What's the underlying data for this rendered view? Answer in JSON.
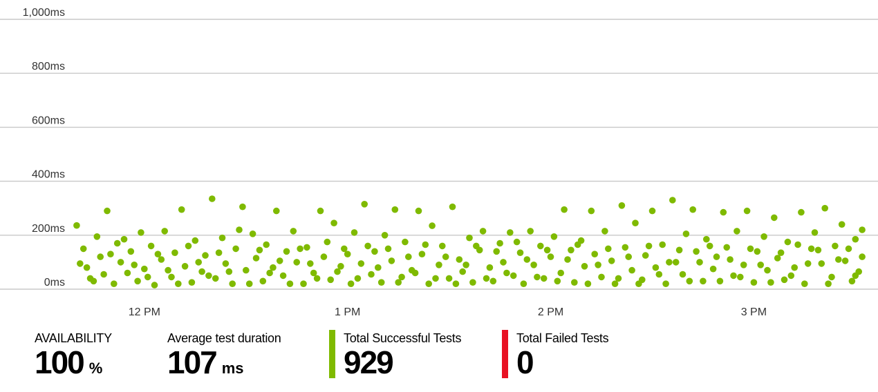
{
  "chart_data": {
    "type": "scatter",
    "title": "",
    "xlabel": "",
    "ylabel": "",
    "x_ticks": [
      "12 PM",
      "1 PM",
      "2 PM",
      "3 PM"
    ],
    "y_ticks": [
      "0ms",
      "200ms",
      "400ms",
      "600ms",
      "800ms",
      "1,000ms"
    ],
    "x_range": [
      "11:39 AM",
      "3:33 PM"
    ],
    "ylim": [
      0,
      1000
    ],
    "grid": true,
    "legend": "none",
    "series": [
      {
        "color": "#7fba00",
        "points": [
          [
            "11:40",
            236
          ],
          [
            "11:42",
            150
          ],
          [
            "11:43",
            80
          ],
          [
            "11:44",
            40
          ],
          [
            "11:46",
            195
          ],
          [
            "11:47",
            120
          ],
          [
            "11:48",
            55
          ],
          [
            "11:49",
            290
          ],
          [
            "11:51",
            20
          ],
          [
            "11:52",
            170
          ],
          [
            "11:53",
            100
          ],
          [
            "11:55",
            60
          ],
          [
            "11:56",
            140
          ],
          [
            "11:58",
            30
          ],
          [
            "11:59",
            210
          ],
          [
            "12:00",
            75
          ],
          [
            "12:02",
            160
          ],
          [
            "12:03",
            15
          ],
          [
            "12:05",
            110
          ],
          [
            "12:06",
            215
          ],
          [
            "12:08",
            45
          ],
          [
            "12:09",
            135
          ],
          [
            "12:11",
            295
          ],
          [
            "12:12",
            85
          ],
          [
            "12:14",
            25
          ],
          [
            "12:15",
            180
          ],
          [
            "12:17",
            65
          ],
          [
            "12:18",
            125
          ],
          [
            "12:20",
            335
          ],
          [
            "12:21",
            40
          ],
          [
            "12:23",
            190
          ],
          [
            "12:24",
            95
          ],
          [
            "12:26",
            20
          ],
          [
            "12:27",
            150
          ],
          [
            "12:29",
            305
          ],
          [
            "12:30",
            70
          ],
          [
            "12:32",
            205
          ],
          [
            "12:33",
            115
          ],
          [
            "12:35",
            30
          ],
          [
            "12:36",
            165
          ],
          [
            "12:38",
            80
          ],
          [
            "12:39",
            290
          ],
          [
            "12:41",
            50
          ],
          [
            "12:42",
            140
          ],
          [
            "12:44",
            215
          ],
          [
            "12:45",
            100
          ],
          [
            "12:47",
            20
          ],
          [
            "12:48",
            155
          ],
          [
            "12:50",
            60
          ],
          [
            "12:52",
            290
          ],
          [
            "12:53",
            120
          ],
          [
            "12:55",
            35
          ],
          [
            "12:56",
            245
          ],
          [
            "12:58",
            85
          ],
          [
            "12:59",
            150
          ],
          [
            "13:01",
            20
          ],
          [
            "13:02",
            210
          ],
          [
            "13:04",
            95
          ],
          [
            "13:05",
            315
          ],
          [
            "13:07",
            55
          ],
          [
            "13:08",
            140
          ],
          [
            "13:10",
            25
          ],
          [
            "13:11",
            200
          ],
          [
            "13:13",
            105
          ],
          [
            "13:14",
            295
          ],
          [
            "13:16",
            45
          ],
          [
            "13:17",
            175
          ],
          [
            "13:19",
            70
          ],
          [
            "13:21",
            290
          ],
          [
            "13:22",
            130
          ],
          [
            "13:24",
            20
          ],
          [
            "13:25",
            235
          ],
          [
            "13:27",
            90
          ],
          [
            "13:28",
            160
          ],
          [
            "13:30",
            40
          ],
          [
            "13:31",
            305
          ],
          [
            "13:33",
            110
          ],
          [
            "13:34",
            65
          ],
          [
            "13:36",
            190
          ],
          [
            "13:37",
            25
          ],
          [
            "13:39",
            145
          ],
          [
            "13:40",
            215
          ],
          [
            "13:42",
            80
          ],
          [
            "13:43",
            30
          ],
          [
            "13:45",
            170
          ],
          [
            "13:46",
            100
          ],
          [
            "13:48",
            210
          ],
          [
            "13:49",
            50
          ],
          [
            "13:51",
            135
          ],
          [
            "13:52",
            20
          ],
          [
            "13:54",
            215
          ],
          [
            "13:55",
            90
          ],
          [
            "13:57",
            160
          ],
          [
            "13:58",
            40
          ],
          [
            "14:00",
            120
          ],
          [
            "14:01",
            195
          ],
          [
            "14:03",
            60
          ],
          [
            "14:04",
            295
          ],
          [
            "14:06",
            145
          ],
          [
            "14:07",
            25
          ],
          [
            "14:09",
            180
          ],
          [
            "14:10",
            85
          ],
          [
            "14:12",
            290
          ],
          [
            "14:13",
            130
          ],
          [
            "14:15",
            45
          ],
          [
            "14:16",
            215
          ],
          [
            "14:18",
            105
          ],
          [
            "14:19",
            20
          ],
          [
            "14:21",
            310
          ],
          [
            "14:22",
            155
          ],
          [
            "14:24",
            70
          ],
          [
            "14:25",
            245
          ],
          [
            "14:27",
            35
          ],
          [
            "14:28",
            125
          ],
          [
            "14:30",
            290
          ],
          [
            "14:31",
            80
          ],
          [
            "14:33",
            165
          ],
          [
            "14:34",
            20
          ],
          [
            "14:36",
            330
          ],
          [
            "14:37",
            100
          ],
          [
            "14:39",
            55
          ],
          [
            "14:40",
            205
          ],
          [
            "14:42",
            295
          ],
          [
            "14:43",
            140
          ],
          [
            "14:45",
            30
          ],
          [
            "14:46",
            185
          ],
          [
            "14:48",
            75
          ],
          [
            "14:49",
            120
          ],
          [
            "14:51",
            285
          ],
          [
            "14:52",
            155
          ],
          [
            "14:54",
            50
          ],
          [
            "14:55",
            215
          ],
          [
            "14:57",
            90
          ],
          [
            "14:58",
            290
          ],
          [
            "15:00",
            25
          ],
          [
            "15:01",
            140
          ],
          [
            "15:03",
            195
          ],
          [
            "15:04",
            70
          ],
          [
            "15:06",
            265
          ],
          [
            "15:07",
            115
          ],
          [
            "15:09",
            35
          ],
          [
            "15:10",
            175
          ],
          [
            "15:12",
            80
          ],
          [
            "15:14",
            285
          ],
          [
            "15:15",
            20
          ],
          [
            "15:17",
            150
          ],
          [
            "15:18",
            210
          ],
          [
            "15:20",
            95
          ],
          [
            "15:21",
            300
          ],
          [
            "15:23",
            45
          ],
          [
            "15:24",
            160
          ],
          [
            "15:26",
            240
          ],
          [
            "15:27",
            105
          ],
          [
            "15:29",
            30
          ],
          [
            "15:30",
            185
          ],
          [
            "15:31",
            65
          ],
          [
            "15:32",
            220
          ],
          [
            "11:41",
            95
          ],
          [
            "11:45",
            30
          ],
          [
            "11:50",
            130
          ],
          [
            "11:54",
            185
          ],
          [
            "11:57",
            90
          ],
          [
            "12:01",
            45
          ],
          [
            "12:04",
            130
          ],
          [
            "12:07",
            70
          ],
          [
            "12:10",
            20
          ],
          [
            "12:13",
            160
          ],
          [
            "12:16",
            100
          ],
          [
            "12:19",
            50
          ],
          [
            "12:22",
            135
          ],
          [
            "12:25",
            65
          ],
          [
            "12:28",
            220
          ],
          [
            "12:31",
            20
          ],
          [
            "12:34",
            145
          ],
          [
            "12:37",
            60
          ],
          [
            "12:40",
            105
          ],
          [
            "12:43",
            20
          ],
          [
            "12:46",
            150
          ],
          [
            "12:49",
            95
          ],
          [
            "12:51",
            40
          ],
          [
            "12:54",
            175
          ],
          [
            "12:57",
            65
          ],
          [
            "13:00",
            130
          ],
          [
            "13:03",
            40
          ],
          [
            "13:06",
            160
          ],
          [
            "13:09",
            80
          ],
          [
            "13:12",
            150
          ],
          [
            "13:15",
            25
          ],
          [
            "13:18",
            120
          ],
          [
            "13:20",
            60
          ],
          [
            "13:23",
            165
          ],
          [
            "13:26",
            40
          ],
          [
            "13:29",
            120
          ],
          [
            "13:32",
            20
          ],
          [
            "13:35",
            90
          ],
          [
            "13:38",
            160
          ],
          [
            "13:41",
            40
          ],
          [
            "13:44",
            140
          ],
          [
            "13:47",
            60
          ],
          [
            "13:50",
            175
          ],
          [
            "13:53",
            110
          ],
          [
            "13:56",
            45
          ],
          [
            "13:59",
            145
          ],
          [
            "14:02",
            30
          ],
          [
            "14:05",
            110
          ],
          [
            "14:08",
            165
          ],
          [
            "14:11",
            20
          ],
          [
            "14:14",
            90
          ],
          [
            "14:17",
            150
          ],
          [
            "14:20",
            40
          ],
          [
            "14:23",
            120
          ],
          [
            "14:26",
            20
          ],
          [
            "14:29",
            160
          ],
          [
            "14:32",
            55
          ],
          [
            "14:35",
            100
          ],
          [
            "14:38",
            145
          ],
          [
            "14:41",
            30
          ],
          [
            "14:44",
            100
          ],
          [
            "14:47",
            160
          ],
          [
            "14:50",
            30
          ],
          [
            "14:53",
            110
          ],
          [
            "14:56",
            45
          ],
          [
            "14:59",
            150
          ],
          [
            "15:02",
            90
          ],
          [
            "15:05",
            25
          ],
          [
            "15:08",
            135
          ],
          [
            "15:11",
            50
          ],
          [
            "15:13",
            165
          ],
          [
            "15:16",
            95
          ],
          [
            "15:19",
            145
          ],
          [
            "15:22",
            20
          ],
          [
            "15:25",
            110
          ],
          [
            "15:28",
            150
          ],
          [
            "15:30",
            50
          ],
          [
            "15:32",
            120
          ]
        ]
      }
    ]
  },
  "metrics": {
    "availability": {
      "label": "AVAILABILITY",
      "value": "100",
      "unit": "%"
    },
    "avg_duration": {
      "label": "Average test duration",
      "value": "107",
      "unit": "ms"
    },
    "successful": {
      "label": "Total Successful Tests",
      "value": "929",
      "color": "#7fba00"
    },
    "failed": {
      "label": "Total Failed Tests",
      "value": "0",
      "color": "#e81123"
    }
  }
}
